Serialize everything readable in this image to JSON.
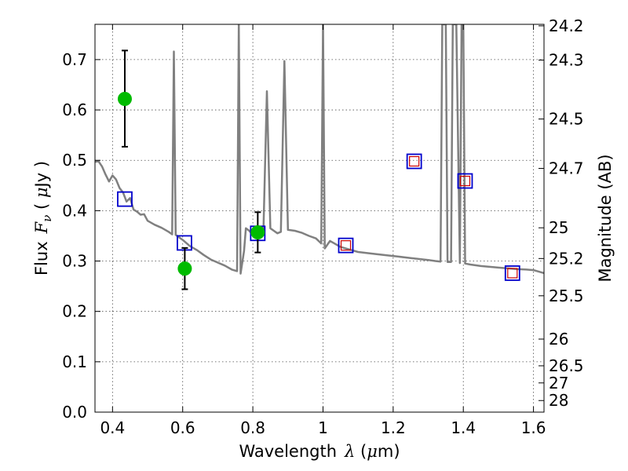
{
  "chart_data": {
    "type": "scatter",
    "title": "",
    "xlabel": {
      "prefix": "Wavelength",
      "symbol": "λ",
      "unit_open": " (",
      "unit_mu": "μ",
      "unit_rest": "m)"
    },
    "ylabel": {
      "prefix": "Flux",
      "symbol": "F",
      "sub": "ν",
      "unit_open": " ( ",
      "unit_mu": "μ",
      "unit_rest": "Jy )"
    },
    "y2label": "Magnitude (AB)",
    "xlim": [
      0.35,
      1.63
    ],
    "ylim": [
      0.0,
      0.77
    ],
    "grid": true,
    "x_ticks": [
      0.4,
      0.6,
      0.8,
      1.0,
      1.2,
      1.4,
      1.6
    ],
    "x_tick_labels": [
      "0.4",
      "0.6",
      "0.8",
      "1",
      "1.2",
      "1.4",
      "1.6"
    ],
    "y_ticks": [
      0.0,
      0.1,
      0.2,
      0.3,
      0.4,
      0.5,
      0.6,
      0.7
    ],
    "y_tick_labels": [
      "0.0",
      "0.1",
      "0.2",
      "0.3",
      "0.4",
      "0.5",
      "0.6",
      "0.7"
    ],
    "y2_ticks": [
      {
        "label": "24.2",
        "flux": 0.767
      },
      {
        "label": "24.3",
        "flux": 0.699
      },
      {
        "label": "24.5",
        "flux": 0.582
      },
      {
        "label": "24.7",
        "flux": 0.484
      },
      {
        "label": "25",
        "flux": 0.366
      },
      {
        "label": "25.2",
        "flux": 0.305
      },
      {
        "label": "25.5",
        "flux": 0.231
      },
      {
        "label": "26",
        "flux": 0.145
      },
      {
        "label": "26.5",
        "flux": 0.092
      },
      {
        "label": "27",
        "flux": 0.058
      },
      {
        "label": "28",
        "flux": 0.023
      }
    ],
    "series": [
      {
        "kind": "model_spectrum",
        "color": "#808080",
        "points": [
          [
            0.35,
            0.497
          ],
          [
            0.36,
            0.498
          ],
          [
            0.37,
            0.488
          ],
          [
            0.38,
            0.472
          ],
          [
            0.39,
            0.458
          ],
          [
            0.4,
            0.47
          ],
          [
            0.41,
            0.462
          ],
          [
            0.42,
            0.445
          ],
          [
            0.43,
            0.436
          ],
          [
            0.44,
            0.418
          ],
          [
            0.45,
            0.425
          ],
          [
            0.46,
            0.402
          ],
          [
            0.47,
            0.398
          ],
          [
            0.48,
            0.392
          ],
          [
            0.49,
            0.393
          ],
          [
            0.5,
            0.38
          ],
          [
            0.52,
            0.372
          ],
          [
            0.54,
            0.366
          ],
          [
            0.56,
            0.358
          ],
          [
            0.57,
            0.353
          ],
          [
            0.575,
            0.716
          ],
          [
            0.58,
            0.352
          ],
          [
            0.6,
            0.342
          ],
          [
            0.62,
            0.33
          ],
          [
            0.64,
            0.322
          ],
          [
            0.66,
            0.312
          ],
          [
            0.68,
            0.303
          ],
          [
            0.7,
            0.297
          ],
          [
            0.72,
            0.291
          ],
          [
            0.74,
            0.283
          ],
          [
            0.755,
            0.28
          ],
          [
            0.76,
            0.77
          ],
          [
            0.765,
            0.275
          ],
          [
            0.775,
            0.32
          ],
          [
            0.78,
            0.365
          ],
          [
            0.79,
            0.36
          ],
          [
            0.8,
            0.352
          ],
          [
            0.81,
            0.358
          ],
          [
            0.82,
            0.368
          ],
          [
            0.83,
            0.355
          ],
          [
            0.84,
            0.637
          ],
          [
            0.85,
            0.365
          ],
          [
            0.86,
            0.36
          ],
          [
            0.87,
            0.355
          ],
          [
            0.88,
            0.358
          ],
          [
            0.89,
            0.697
          ],
          [
            0.9,
            0.362
          ],
          [
            0.92,
            0.36
          ],
          [
            0.94,
            0.356
          ],
          [
            0.96,
            0.35
          ],
          [
            0.98,
            0.345
          ],
          [
            0.995,
            0.335
          ],
          [
            1.0,
            0.77
          ],
          [
            1.005,
            0.325
          ],
          [
            1.02,
            0.34
          ],
          [
            1.05,
            0.328
          ],
          [
            1.08,
            0.322
          ],
          [
            1.1,
            0.318
          ],
          [
            1.15,
            0.314
          ],
          [
            1.2,
            0.31
          ],
          [
            1.25,
            0.306
          ],
          [
            1.3,
            0.302
          ],
          [
            1.32,
            0.3
          ],
          [
            1.335,
            0.299
          ],
          [
            1.34,
            0.77
          ],
          [
            1.35,
            0.77
          ],
          [
            1.355,
            0.298
          ],
          [
            1.365,
            0.298
          ],
          [
            1.37,
            0.77
          ],
          [
            1.38,
            0.77
          ],
          [
            1.39,
            0.296
          ],
          [
            1.395,
            0.77
          ],
          [
            1.4,
            0.77
          ],
          [
            1.405,
            0.295
          ],
          [
            1.42,
            0.293
          ],
          [
            1.45,
            0.29
          ],
          [
            1.5,
            0.287
          ],
          [
            1.55,
            0.284
          ],
          [
            1.58,
            0.283
          ],
          [
            1.6,
            0.282
          ],
          [
            1.63,
            0.276
          ]
        ]
      },
      {
        "kind": "model_photometry",
        "marker": "open-square",
        "color": "#0000cc",
        "points": [
          [
            0.435,
            0.423
          ],
          [
            0.605,
            0.336
          ],
          [
            0.814,
            0.355
          ],
          [
            1.065,
            0.331
          ],
          [
            1.26,
            0.498
          ],
          [
            1.405,
            0.459
          ],
          [
            1.54,
            0.276
          ]
        ]
      },
      {
        "kind": "observed_photometry_nir",
        "marker": "open-square",
        "color": "#cc0000",
        "points": [
          [
            1.065,
            0.331
          ],
          [
            1.26,
            0.498
          ],
          [
            1.405,
            0.459
          ],
          [
            1.54,
            0.276
          ]
        ]
      },
      {
        "kind": "observed_photometry",
        "marker": "circle",
        "color": "#00bb00",
        "errorbar_color": "#000000",
        "points": [
          {
            "x": 0.435,
            "y": 0.622,
            "ylo": 0.527,
            "yhi": 0.718
          },
          {
            "x": 0.606,
            "y": 0.285,
            "ylo": 0.244,
            "yhi": 0.326
          },
          {
            "x": 0.814,
            "y": 0.357,
            "ylo": 0.317,
            "yhi": 0.397
          }
        ]
      }
    ]
  }
}
